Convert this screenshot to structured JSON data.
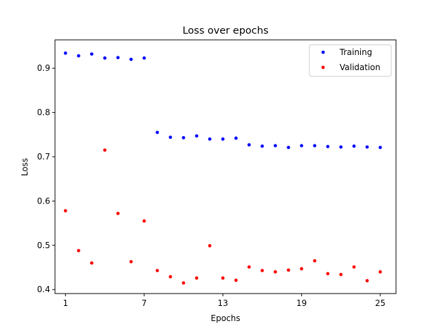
{
  "chart_data": {
    "type": "scatter",
    "title": "Loss over epochs",
    "xlabel": "Epochs",
    "ylabel": "Loss",
    "xlim": [
      0.2,
      26.2
    ],
    "ylim": [
      0.391,
      0.964
    ],
    "xticks": [
      1,
      7,
      13,
      19,
      25
    ],
    "yticks": [
      0.4,
      0.5,
      0.6,
      0.7,
      0.8,
      0.9
    ],
    "grid": false,
    "legend_position": "top-right",
    "x": [
      1,
      2,
      3,
      4,
      5,
      6,
      7,
      8,
      9,
      10,
      11,
      12,
      13,
      14,
      15,
      16,
      17,
      18,
      19,
      20,
      21,
      22,
      23,
      24,
      25
    ],
    "series": [
      {
        "name": "Training",
        "color": "#0000ff",
        "values": [
          0.934,
          0.928,
          0.932,
          0.923,
          0.924,
          0.92,
          0.923,
          0.755,
          0.744,
          0.743,
          0.747,
          0.74,
          0.74,
          0.742,
          0.727,
          0.724,
          0.725,
          0.721,
          0.725,
          0.725,
          0.723,
          0.722,
          0.724,
          0.722,
          0.721
        ]
      },
      {
        "name": "Validation",
        "color": "#ff0000",
        "values": [
          0.578,
          0.488,
          0.46,
          0.715,
          0.572,
          0.463,
          0.555,
          0.443,
          0.429,
          0.415,
          0.426,
          0.499,
          0.426,
          0.421,
          0.451,
          0.443,
          0.44,
          0.444,
          0.447,
          0.465,
          0.436,
          0.434,
          0.451,
          0.42,
          0.44
        ]
      }
    ]
  }
}
